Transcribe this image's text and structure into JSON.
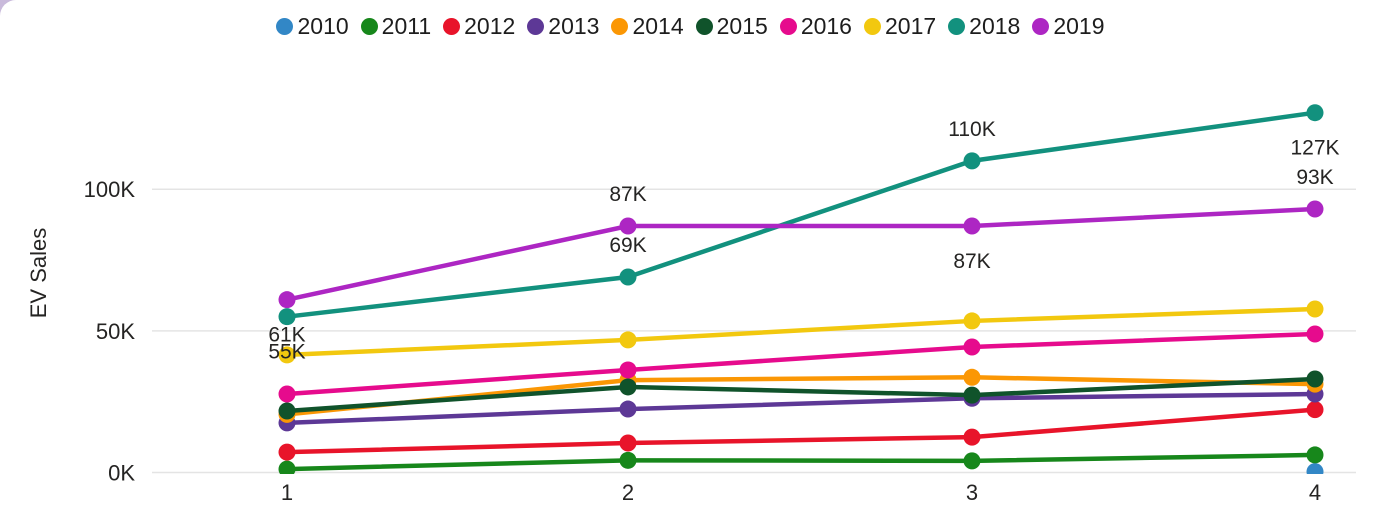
{
  "page": {
    "card_background": "#ffffff",
    "page_background": "#c9badb",
    "text_color": "#252423",
    "gridline_color": "#e4e4e4"
  },
  "chart_data": {
    "type": "line",
    "title": "",
    "xlabel": "",
    "ylabel": "EV Sales",
    "x_tick_labels": [
      "1",
      "2",
      "3",
      "4"
    ],
    "y_ticks": [
      {
        "label": "0K",
        "value": 0
      },
      {
        "label": "50K",
        "value": 50
      },
      {
        "label": "100K",
        "value": 100
      }
    ],
    "ylim": [
      0,
      135
    ],
    "grid": true,
    "legend_position": "top-center",
    "series": [
      {
        "name": "2010",
        "color": "#3287c6",
        "values": [
          null,
          null,
          null,
          0.3
        ]
      },
      {
        "name": "2011",
        "color": "#17871b",
        "values": [
          1.2,
          4.3,
          4.1,
          6.2
        ]
      },
      {
        "name": "2012",
        "color": "#e8142a",
        "values": [
          7.2,
          10.4,
          12.5,
          22.2
        ]
      },
      {
        "name": "2013",
        "color": "#5d3896",
        "values": [
          17.5,
          22.4,
          26.2,
          27.7
        ]
      },
      {
        "name": "2014",
        "color": "#fb9704",
        "values": [
          20.5,
          32.6,
          33.6,
          31.2
        ]
      },
      {
        "name": "2015",
        "color": "#10532b",
        "values": [
          21.7,
          30.2,
          27.3,
          33.0
        ]
      },
      {
        "name": "2016",
        "color": "#e60b8d",
        "values": [
          27.7,
          36.2,
          44.3,
          48.9
        ]
      },
      {
        "name": "2017",
        "color": "#f2c80f",
        "values": [
          41.5,
          46.8,
          53.5,
          57.7
        ]
      },
      {
        "name": "2018",
        "color": "#12917e",
        "values": [
          55,
          69,
          110,
          127
        ]
      },
      {
        "name": "2019",
        "color": "#ad26c3",
        "values": [
          61,
          87,
          87,
          93
        ]
      }
    ],
    "point_labels": [
      {
        "series": "2019",
        "quarter": 1,
        "text": "61K",
        "position": "below"
      },
      {
        "series": "2018",
        "quarter": 1,
        "text": "55K",
        "position": "below"
      },
      {
        "series": "2019",
        "quarter": 2,
        "text": "87K",
        "position": "above"
      },
      {
        "series": "2018",
        "quarter": 2,
        "text": "69K",
        "position": "above"
      },
      {
        "series": "2018",
        "quarter": 3,
        "text": "110K",
        "position": "above"
      },
      {
        "series": "2019",
        "quarter": 3,
        "text": "87K",
        "position": "below"
      },
      {
        "series": "2018",
        "quarter": 4,
        "text": "127K",
        "position": "below"
      },
      {
        "series": "2019",
        "quarter": 4,
        "text": "93K",
        "position": "above"
      }
    ]
  }
}
